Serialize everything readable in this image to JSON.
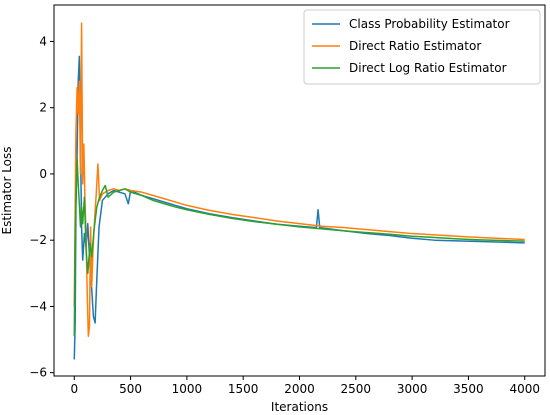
{
  "chart_data": {
    "type": "line",
    "title": "",
    "xlabel": "Iterations",
    "ylabel": "Estimator Loss",
    "xlim": [
      -180,
      4180
    ],
    "ylim": [
      -6.1,
      5.1
    ],
    "xticks": [
      0,
      500,
      1000,
      1500,
      2000,
      2500,
      3000,
      3500,
      4000
    ],
    "yticks": [
      -6,
      -4,
      -2,
      0,
      2,
      4
    ],
    "grid": false,
    "legend_position": "upper right",
    "series": [
      {
        "name": "Class Probability Estimator",
        "color": "#1f77b4",
        "points": [
          [
            0,
            -5.6
          ],
          [
            8,
            -4.5
          ],
          [
            15,
            -1.0
          ],
          [
            25,
            0.6
          ],
          [
            35,
            2.8
          ],
          [
            45,
            3.55
          ],
          [
            55,
            1.0
          ],
          [
            65,
            -1.6
          ],
          [
            75,
            -2.6
          ],
          [
            90,
            -1.8
          ],
          [
            105,
            -2.2
          ],
          [
            120,
            -1.5
          ],
          [
            140,
            -2.8
          ],
          [
            155,
            -3.5
          ],
          [
            170,
            -4.3
          ],
          [
            185,
            -4.5
          ],
          [
            200,
            -3.2
          ],
          [
            220,
            -1.6
          ],
          [
            250,
            -0.8
          ],
          [
            300,
            -0.6
          ],
          [
            350,
            -0.5
          ],
          [
            400,
            -0.55
          ],
          [
            450,
            -0.6
          ],
          [
            480,
            -0.9
          ],
          [
            500,
            -0.5
          ],
          [
            600,
            -0.65
          ],
          [
            700,
            -0.75
          ],
          [
            800,
            -0.85
          ],
          [
            900,
            -0.95
          ],
          [
            1000,
            -1.05
          ],
          [
            1200,
            -1.2
          ],
          [
            1400,
            -1.32
          ],
          [
            1600,
            -1.42
          ],
          [
            1800,
            -1.52
          ],
          [
            2000,
            -1.58
          ],
          [
            2150,
            -1.62
          ],
          [
            2165,
            -1.08
          ],
          [
            2180,
            -1.62
          ],
          [
            2400,
            -1.72
          ],
          [
            2600,
            -1.8
          ],
          [
            2800,
            -1.86
          ],
          [
            3000,
            -1.94
          ],
          [
            3200,
            -2.0
          ],
          [
            3400,
            -2.02
          ],
          [
            3600,
            -2.04
          ],
          [
            3800,
            -2.06
          ],
          [
            4000,
            -2.08
          ]
        ]
      },
      {
        "name": "Direct Ratio Estimator",
        "color": "#ff7f0e",
        "points": [
          [
            0,
            -4.0
          ],
          [
            8,
            -1.0
          ],
          [
            15,
            1.3
          ],
          [
            25,
            2.6
          ],
          [
            35,
            1.8
          ],
          [
            45,
            2.8
          ],
          [
            55,
            0.0
          ],
          [
            65,
            4.55
          ],
          [
            75,
            -0.3
          ],
          [
            85,
            0.9
          ],
          [
            95,
            -0.8
          ],
          [
            105,
            -1.9
          ],
          [
            115,
            -3.6
          ],
          [
            125,
            -4.9
          ],
          [
            135,
            -4.6
          ],
          [
            145,
            -1.6
          ],
          [
            155,
            -3.4
          ],
          [
            165,
            -2.4
          ],
          [
            180,
            -1.4
          ],
          [
            195,
            -0.6
          ],
          [
            210,
            0.3
          ],
          [
            225,
            -0.8
          ],
          [
            250,
            -0.6
          ],
          [
            300,
            -0.5
          ],
          [
            350,
            -0.45
          ],
          [
            400,
            -0.5
          ],
          [
            450,
            -0.45
          ],
          [
            500,
            -0.5
          ],
          [
            600,
            -0.55
          ],
          [
            700,
            -0.65
          ],
          [
            800,
            -0.75
          ],
          [
            900,
            -0.85
          ],
          [
            1000,
            -0.95
          ],
          [
            1200,
            -1.1
          ],
          [
            1400,
            -1.22
          ],
          [
            1600,
            -1.32
          ],
          [
            1800,
            -1.42
          ],
          [
            2000,
            -1.5
          ],
          [
            2200,
            -1.58
          ],
          [
            2400,
            -1.62
          ],
          [
            2600,
            -1.68
          ],
          [
            2800,
            -1.74
          ],
          [
            3000,
            -1.8
          ],
          [
            3200,
            -1.84
          ],
          [
            3400,
            -1.88
          ],
          [
            3600,
            -1.92
          ],
          [
            3800,
            -1.95
          ],
          [
            4000,
            -1.98
          ]
        ]
      },
      {
        "name": "Direct Log Ratio Estimator",
        "color": "#2ca02c",
        "points": [
          [
            0,
            -4.9
          ],
          [
            8,
            -2.0
          ],
          [
            15,
            -0.6
          ],
          [
            25,
            0.45
          ],
          [
            35,
            -0.3
          ],
          [
            45,
            -0.9
          ],
          [
            55,
            -1.6
          ],
          [
            65,
            -1.0
          ],
          [
            75,
            -1.5
          ],
          [
            90,
            -0.7
          ],
          [
            105,
            -2.3
          ],
          [
            120,
            -3.0
          ],
          [
            140,
            -2.1
          ],
          [
            155,
            -2.5
          ],
          [
            175,
            -1.7
          ],
          [
            200,
            -1.0
          ],
          [
            225,
            -0.7
          ],
          [
            250,
            -0.5
          ],
          [
            275,
            -0.35
          ],
          [
            300,
            -0.7
          ],
          [
            350,
            -0.55
          ],
          [
            400,
            -0.5
          ],
          [
            450,
            -0.45
          ],
          [
            500,
            -0.55
          ],
          [
            600,
            -0.65
          ],
          [
            700,
            -0.8
          ],
          [
            800,
            -0.9
          ],
          [
            900,
            -1.0
          ],
          [
            1000,
            -1.08
          ],
          [
            1200,
            -1.22
          ],
          [
            1400,
            -1.34
          ],
          [
            1600,
            -1.44
          ],
          [
            1800,
            -1.52
          ],
          [
            2000,
            -1.6
          ],
          [
            2200,
            -1.66
          ],
          [
            2400,
            -1.72
          ],
          [
            2600,
            -1.77
          ],
          [
            2800,
            -1.82
          ],
          [
            3000,
            -1.88
          ],
          [
            3200,
            -1.92
          ],
          [
            3400,
            -1.96
          ],
          [
            3600,
            -1.99
          ],
          [
            3800,
            -2.01
          ],
          [
            4000,
            -2.03
          ]
        ]
      }
    ]
  }
}
